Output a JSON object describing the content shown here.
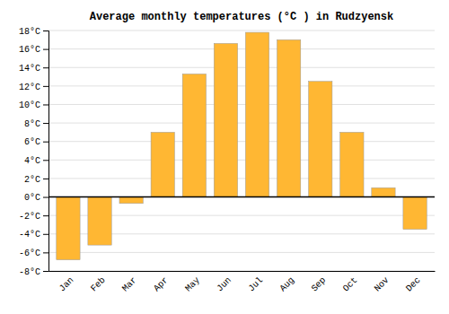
{
  "chart_data": {
    "type": "bar",
    "title": "Average monthly temperatures (°C ) in Rudzyensk",
    "categories": [
      "Jan",
      "Feb",
      "Mar",
      "Apr",
      "May",
      "Jun",
      "Jul",
      "Aug",
      "Sep",
      "Oct",
      "Nov",
      "Dec"
    ],
    "values": [
      -6.8,
      -5.2,
      -0.7,
      7.0,
      13.3,
      16.6,
      17.8,
      17.0,
      12.5,
      7.0,
      1.0,
      -3.5
    ],
    "color": "#FFB733",
    "ylim": [
      -8,
      18
    ],
    "yticks": [
      {
        "value": -8,
        "label": "-8°C"
      },
      {
        "value": -6,
        "label": "-6°C"
      },
      {
        "value": -4,
        "label": "-4°C"
      },
      {
        "value": -2,
        "label": "-2°C"
      },
      {
        "value": 0,
        "label": "0°C"
      },
      {
        "value": 2,
        "label": "2°C"
      },
      {
        "value": 4,
        "label": "4°C"
      },
      {
        "value": 6,
        "label": "6°C"
      },
      {
        "value": 8,
        "label": "8°C"
      },
      {
        "value": 10,
        "label": "10°C"
      },
      {
        "value": 12,
        "label": "12°C"
      },
      {
        "value": 14,
        "label": "14°C"
      },
      {
        "value": 16,
        "label": "16°C"
      },
      {
        "value": 18,
        "label": "18°C"
      }
    ],
    "grid": true
  }
}
